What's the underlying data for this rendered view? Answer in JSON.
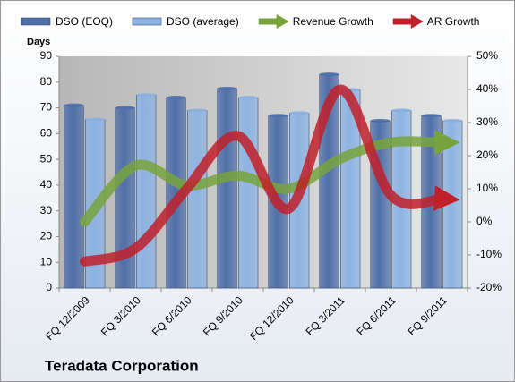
{
  "chart_data": {
    "type": "bar-line",
    "y_label": "Days",
    "footer": "Teradata Corporation",
    "categories": [
      "FQ 12/2009",
      "FQ 3/2010",
      "FQ 6/2010",
      "FQ 9/2010",
      "FQ 12/2010",
      "FQ 3/2011",
      "FQ 6/2011",
      "FQ 9/2011"
    ],
    "series": [
      {
        "name": "DSO (EOQ)",
        "type": "bar",
        "color": "#4f6fa8",
        "values": [
          71,
          70,
          74,
          77.5,
          67,
          83,
          65,
          67
        ]
      },
      {
        "name": "DSO (average)",
        "type": "bar",
        "color": "#8db3e2",
        "values": [
          65.5,
          75,
          69,
          74,
          68,
          77,
          69,
          65
        ]
      },
      {
        "name": "Revenue Growth",
        "type": "line",
        "axis": "y2",
        "color": "#77a33c",
        "values": [
          0,
          17,
          11,
          14,
          10,
          19,
          24,
          24
        ]
      },
      {
        "name": "AR Growth",
        "type": "line",
        "axis": "y2",
        "color": "#c0202a",
        "values": [
          -12,
          -8,
          10,
          26,
          4,
          40,
          8,
          7
        ]
      }
    ],
    "ylim": [
      0,
      90
    ],
    "yticks": [
      0,
      10,
      20,
      30,
      40,
      50,
      60,
      70,
      80,
      90
    ],
    "y2lim": [
      -20,
      50
    ],
    "y2ticks": [
      {
        "value": -20,
        "label": "-20%"
      },
      {
        "value": -10,
        "label": "-10%"
      },
      {
        "value": 0,
        "label": "0%"
      },
      {
        "value": 10,
        "label": "10%"
      },
      {
        "value": 20,
        "label": "20%"
      },
      {
        "value": 30,
        "label": "30%"
      },
      {
        "value": 40,
        "label": "40%"
      },
      {
        "value": 50,
        "label": "50%"
      }
    ],
    "grid": false
  }
}
